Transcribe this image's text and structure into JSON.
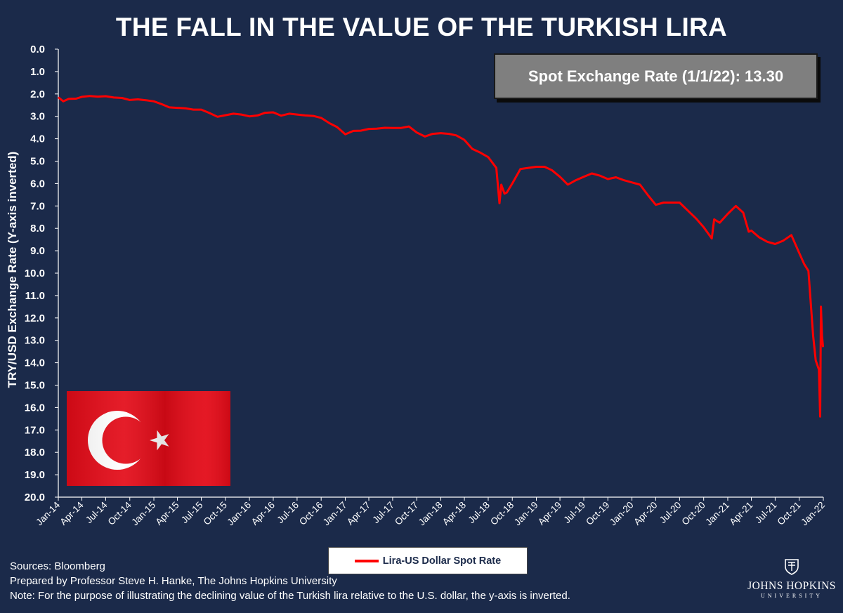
{
  "chart_data": {
    "type": "line",
    "title": "THE FALL IN THE VALUE OF THE TURKISH LIRA",
    "ylabel": "TRY/USD Exchange Rate (Y-axis inverted)",
    "xlabel": "",
    "ylim": [
      0,
      20
    ],
    "y_inverted": true,
    "grid": false,
    "y_ticks": [
      "0.0",
      "1.0",
      "2.0",
      "3.0",
      "4.0",
      "5.0",
      "6.0",
      "7.0",
      "8.0",
      "9.0",
      "10.0",
      "11.0",
      "12.0",
      "13.0",
      "14.0",
      "15.0",
      "16.0",
      "17.0",
      "18.0",
      "19.0",
      "20.0"
    ],
    "x_ticks": [
      "Jan-14",
      "Apr-14",
      "Jul-14",
      "Oct-14",
      "Jan-15",
      "Apr-15",
      "Jul-15",
      "Oct-15",
      "Jan-16",
      "Apr-16",
      "Jul-16",
      "Oct-16",
      "Jan-17",
      "Apr-17",
      "Jul-17",
      "Oct-17",
      "Jan-18",
      "Apr-18",
      "Jul-18",
      "Oct-18",
      "Jan-19",
      "Apr-19",
      "Jul-19",
      "Oct-19",
      "Jan-20",
      "Apr-20",
      "Jul-20",
      "Oct-20",
      "Jan-21",
      "Apr-21",
      "Jul-21",
      "Oct-21",
      "Jan-22"
    ],
    "legend_position": "bottom-center",
    "series": [
      {
        "name": "Lira-US Dollar Spot Rate",
        "color": "#ff0000",
        "points": [
          [
            "2014-01-01",
            2.15
          ],
          [
            "2014-01-20",
            2.33
          ],
          [
            "2014-02-10",
            2.22
          ],
          [
            "2014-03-10",
            2.21
          ],
          [
            "2014-04-01",
            2.13
          ],
          [
            "2014-05-01",
            2.09
          ],
          [
            "2014-06-01",
            2.12
          ],
          [
            "2014-07-01",
            2.1
          ],
          [
            "2014-08-01",
            2.16
          ],
          [
            "2014-09-01",
            2.18
          ],
          [
            "2014-10-01",
            2.27
          ],
          [
            "2014-11-01",
            2.24
          ],
          [
            "2014-12-01",
            2.28
          ],
          [
            "2015-01-01",
            2.33
          ],
          [
            "2015-02-01",
            2.46
          ],
          [
            "2015-03-01",
            2.6
          ],
          [
            "2015-04-01",
            2.62
          ],
          [
            "2015-05-01",
            2.64
          ],
          [
            "2015-06-01",
            2.7
          ],
          [
            "2015-07-01",
            2.7
          ],
          [
            "2015-08-01",
            2.85
          ],
          [
            "2015-09-01",
            3.02
          ],
          [
            "2015-10-01",
            2.95
          ],
          [
            "2015-11-01",
            2.88
          ],
          [
            "2015-12-01",
            2.92
          ],
          [
            "2016-01-01",
            3.0
          ],
          [
            "2016-02-01",
            2.96
          ],
          [
            "2016-03-01",
            2.84
          ],
          [
            "2016-04-01",
            2.82
          ],
          [
            "2016-05-01",
            2.97
          ],
          [
            "2016-06-01",
            2.88
          ],
          [
            "2016-07-01",
            2.92
          ],
          [
            "2016-08-01",
            2.96
          ],
          [
            "2016-09-01",
            2.98
          ],
          [
            "2016-10-01",
            3.07
          ],
          [
            "2016-11-01",
            3.3
          ],
          [
            "2016-12-01",
            3.48
          ],
          [
            "2017-01-01",
            3.8
          ],
          [
            "2017-02-01",
            3.65
          ],
          [
            "2017-03-01",
            3.64
          ],
          [
            "2017-04-01",
            3.56
          ],
          [
            "2017-05-01",
            3.55
          ],
          [
            "2017-06-01",
            3.51
          ],
          [
            "2017-07-01",
            3.52
          ],
          [
            "2017-08-01",
            3.52
          ],
          [
            "2017-09-01",
            3.45
          ],
          [
            "2017-10-01",
            3.72
          ],
          [
            "2017-11-01",
            3.9
          ],
          [
            "2017-12-01",
            3.78
          ],
          [
            "2018-01-01",
            3.75
          ],
          [
            "2018-02-01",
            3.78
          ],
          [
            "2018-03-01",
            3.85
          ],
          [
            "2018-04-01",
            4.05
          ],
          [
            "2018-05-01",
            4.45
          ],
          [
            "2018-06-01",
            4.62
          ],
          [
            "2018-07-01",
            4.82
          ],
          [
            "2018-08-01",
            5.3
          ],
          [
            "2018-08-13",
            6.88
          ],
          [
            "2018-08-20",
            6.05
          ],
          [
            "2018-09-01",
            6.45
          ],
          [
            "2018-09-10",
            6.4
          ],
          [
            "2018-10-01",
            6.0
          ],
          [
            "2018-11-01",
            5.35
          ],
          [
            "2018-12-01",
            5.3
          ],
          [
            "2019-01-01",
            5.25
          ],
          [
            "2019-02-01",
            5.25
          ],
          [
            "2019-03-01",
            5.4
          ],
          [
            "2019-04-01",
            5.7
          ],
          [
            "2019-05-01",
            6.05
          ],
          [
            "2019-06-01",
            5.85
          ],
          [
            "2019-07-01",
            5.7
          ],
          [
            "2019-08-01",
            5.55
          ],
          [
            "2019-09-01",
            5.65
          ],
          [
            "2019-10-01",
            5.8
          ],
          [
            "2019-11-01",
            5.72
          ],
          [
            "2019-12-01",
            5.85
          ],
          [
            "2020-01-01",
            5.95
          ],
          [
            "2020-02-01",
            6.05
          ],
          [
            "2020-03-01",
            6.5
          ],
          [
            "2020-04-01",
            6.95
          ],
          [
            "2020-05-01",
            6.85
          ],
          [
            "2020-06-01",
            6.85
          ],
          [
            "2020-07-01",
            6.85
          ],
          [
            "2020-08-01",
            7.2
          ],
          [
            "2020-09-01",
            7.55
          ],
          [
            "2020-10-01",
            7.95
          ],
          [
            "2020-11-01",
            8.45
          ],
          [
            "2020-11-10",
            7.6
          ],
          [
            "2020-12-01",
            7.75
          ],
          [
            "2021-01-01",
            7.35
          ],
          [
            "2021-02-01",
            7.0
          ],
          [
            "2021-03-01",
            7.3
          ],
          [
            "2021-03-22",
            8.15
          ],
          [
            "2021-04-01",
            8.1
          ],
          [
            "2021-05-01",
            8.4
          ],
          [
            "2021-06-01",
            8.6
          ],
          [
            "2021-07-01",
            8.7
          ],
          [
            "2021-08-01",
            8.55
          ],
          [
            "2021-09-01",
            8.3
          ],
          [
            "2021-10-01",
            9.1
          ],
          [
            "2021-10-20",
            9.6
          ],
          [
            "2021-11-05",
            9.9
          ],
          [
            "2021-11-23",
            12.8
          ],
          [
            "2021-12-03",
            13.9
          ],
          [
            "2021-12-15",
            14.3
          ],
          [
            "2021-12-20",
            16.4
          ],
          [
            "2021-12-23",
            11.5
          ],
          [
            "2021-12-27",
            12.8
          ],
          [
            "2021-12-31",
            13.3
          ]
        ]
      }
    ]
  },
  "annotation": {
    "spot_box": "Spot Exchange Rate (1/1/22): 13.30"
  },
  "footer": {
    "sources": "Sources: Bloomberg",
    "prepared": "Prepared by Professor Steve H. Hanke, The Johns Hopkins University",
    "note": "Note: For the purpose of illustrating the declining value of the Turkish lira relative to the U.S. dollar, the y-axis is inverted.",
    "logo_name": "JOHNS HOPKINS",
    "logo_sub": "UNIVERSITY"
  },
  "flag": {
    "icon": "turkish-flag-icon",
    "color_field": "#e30a17",
    "color_emblem": "#ffffff"
  }
}
